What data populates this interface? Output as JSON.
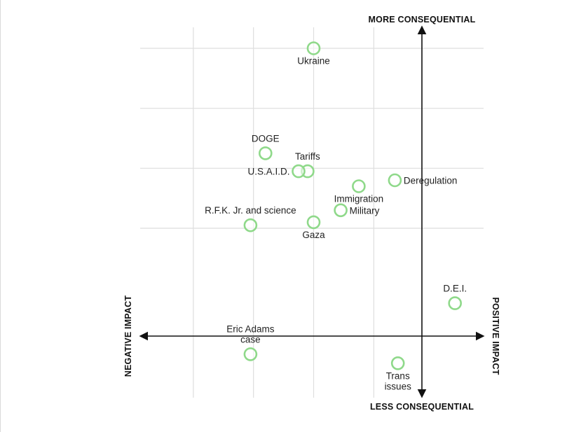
{
  "chart_data": {
    "type": "scatter",
    "title": "",
    "axis_labels": {
      "top": "MORE CONSEQUENTIAL",
      "bottom": "LESS CONSEQUENTIAL",
      "left": "NEGATIVE IMPACT",
      "right": "POSITIVE IMPACT"
    },
    "xlim": [
      -10,
      2
    ],
    "ylim": [
      -2,
      10
    ],
    "grid": true,
    "points": [
      {
        "name": "Ukraine",
        "x": -4.0,
        "y": 10.0,
        "label_lines": [
          "Ukraine"
        ],
        "label_pos": "below"
      },
      {
        "name": "DOGE",
        "x": -5.6,
        "y": 6.5,
        "label_lines": [
          "DOGE"
        ],
        "label_pos": "above"
      },
      {
        "name": "Tariffs",
        "x": -4.2,
        "y": 5.9,
        "label_lines": [
          "Tariffs"
        ],
        "label_pos": "above"
      },
      {
        "name": "U.S.A.I.D.",
        "x": -4.5,
        "y": 5.9,
        "label_lines": [
          "U.S.A.I.D."
        ],
        "label_pos": "left"
      },
      {
        "name": "Deregulation",
        "x": -1.3,
        "y": 5.6,
        "label_lines": [
          "Deregulation"
        ],
        "label_pos": "right"
      },
      {
        "name": "Immigration",
        "x": -2.5,
        "y": 5.4,
        "label_lines": [
          "Immigration"
        ],
        "label_pos": "below"
      },
      {
        "name": "Military",
        "x": -3.1,
        "y": 4.6,
        "label_lines": [
          "Military"
        ],
        "label_pos": "right"
      },
      {
        "name": "R.F.K. Jr. and science",
        "x": -6.1,
        "y": 4.1,
        "label_lines": [
          "R.F.K. Jr. and science"
        ],
        "label_pos": "above"
      },
      {
        "name": "Gaza",
        "x": -4.0,
        "y": 4.2,
        "label_lines": [
          "Gaza"
        ],
        "label_pos": "below"
      },
      {
        "name": "D.E.I.",
        "x": 0.7,
        "y": 1.5,
        "label_lines": [
          "D.E.I."
        ],
        "label_pos": "above"
      },
      {
        "name": "Eric Adams case",
        "x": -6.1,
        "y": -0.2,
        "label_lines": [
          "Eric Adams",
          "case"
        ],
        "label_pos": "above"
      },
      {
        "name": "Trans issues",
        "x": -1.2,
        "y": -0.5,
        "label_lines": [
          "Trans",
          "issues"
        ],
        "label_pos": "below"
      }
    ],
    "colors": {
      "point_stroke": "#8fd98a",
      "axis": "#111111",
      "grid": "#dedede"
    }
  }
}
